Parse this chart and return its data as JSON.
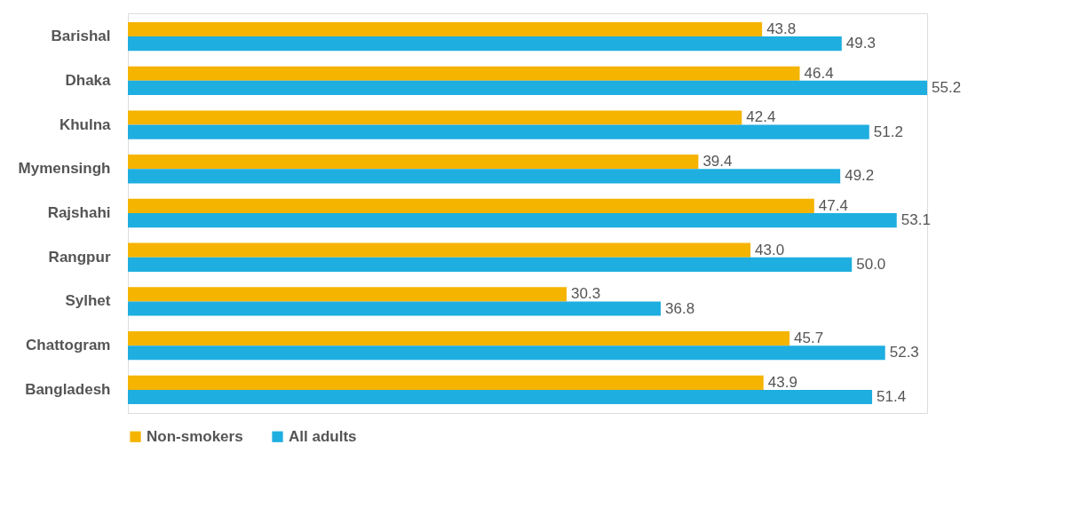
{
  "chart_data": {
    "type": "bar",
    "orientation": "horizontal",
    "categories": [
      "Barishal",
      "Dhaka",
      "Khulna",
      "Mymensingh",
      "Rajshahi",
      "Rangpur",
      "Sylhet",
      "Chattogram",
      "Bangladesh"
    ],
    "series": [
      {
        "name": "Non-smokers",
        "color": "#f5b400",
        "values": [
          43.8,
          46.4,
          42.4,
          39.4,
          47.4,
          43.0,
          30.3,
          45.7,
          43.9
        ],
        "value_labels": [
          "43.8",
          "46.4",
          "42.4",
          "39.4",
          "47.4",
          "43.0",
          "30.3",
          "45.7",
          "43.9"
        ]
      },
      {
        "name": "All adults",
        "color": "#1eaee0",
        "values": [
          49.3,
          55.2,
          51.2,
          49.2,
          53.1,
          50.0,
          36.8,
          52.3,
          51.4
        ],
        "value_labels": [
          "49.3",
          "55.2",
          "51.2",
          "49.2",
          "53.1",
          "50.0",
          "36.8",
          "52.3",
          "51.4"
        ]
      }
    ],
    "data_labels": true,
    "grid": false,
    "legend": "bottom"
  }
}
